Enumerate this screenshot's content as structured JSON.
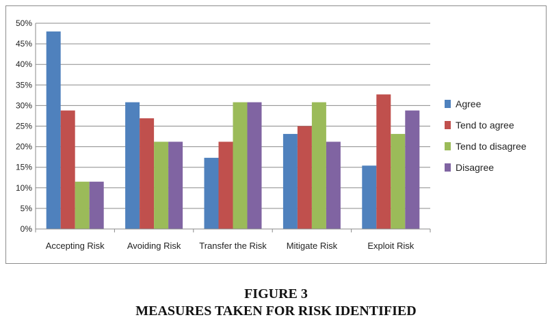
{
  "chart_data": {
    "type": "bar",
    "categories": [
      "Accepting Risk",
      "Avoiding Risk",
      "Transfer the Risk",
      "Mitigate Risk",
      "Exploit Risk"
    ],
    "series": [
      {
        "name": "Agree",
        "color": "#4f81bd",
        "values": [
          48,
          30.8,
          17.3,
          23.1,
          15.4
        ]
      },
      {
        "name": "Tend to agree",
        "color": "#c0504d",
        "values": [
          28.8,
          26.9,
          21.2,
          25,
          32.7
        ]
      },
      {
        "name": "Tend to disagree",
        "color": "#9bbb59",
        "values": [
          11.5,
          21.2,
          30.8,
          30.8,
          23.1
        ]
      },
      {
        "name": "Disagree",
        "color": "#8064a2",
        "values": [
          11.5,
          21.2,
          30.8,
          21.2,
          28.8
        ]
      }
    ],
    "ylim": [
      0,
      50
    ],
    "yticks": [
      "0%",
      "5%",
      "10%",
      "15%",
      "20%",
      "25%",
      "30%",
      "35%",
      "40%",
      "45%",
      "50%"
    ],
    "grid": true,
    "legend_position": "right"
  },
  "caption": {
    "line1": "FIGURE 3",
    "line2": "MEASURES TAKEN FOR RISK IDENTIFIED"
  }
}
